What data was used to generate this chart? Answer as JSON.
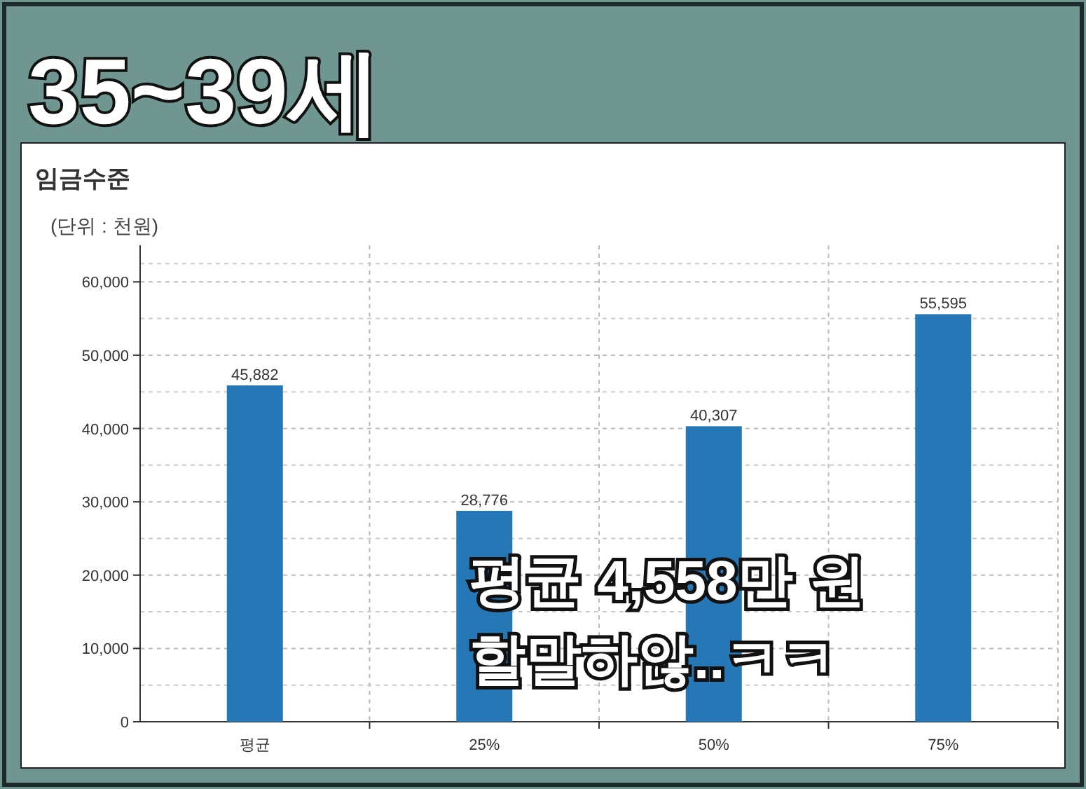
{
  "chart_data": {
    "type": "bar",
    "title": "35~39세",
    "subtitle": "임금수준",
    "ylabel": "(단위 : 천원)",
    "categories": [
      "평균",
      "25%",
      "50%",
      "75%"
    ],
    "values": [
      45882,
      28776,
      40307,
      55595
    ],
    "value_labels": [
      "45,882",
      "28,776",
      "40,307",
      "55,595"
    ],
    "color": "#2577b5",
    "ylim": [
      0,
      65000
    ],
    "yticks": [
      {
        "value": 0,
        "label": "0"
      },
      {
        "value": 10000,
        "label": "10,000"
      },
      {
        "value": 20000,
        "label": "20,000"
      },
      {
        "value": 30000,
        "label": "30,000"
      },
      {
        "value": 40000,
        "label": "40,000"
      },
      {
        "value": 50000,
        "label": "50,000"
      },
      {
        "value": 60000,
        "label": "60,000"
      }
    ],
    "grid": true,
    "annotations": [
      "평균 4,558만 원",
      "할말하않..ㅋㅋ"
    ]
  }
}
